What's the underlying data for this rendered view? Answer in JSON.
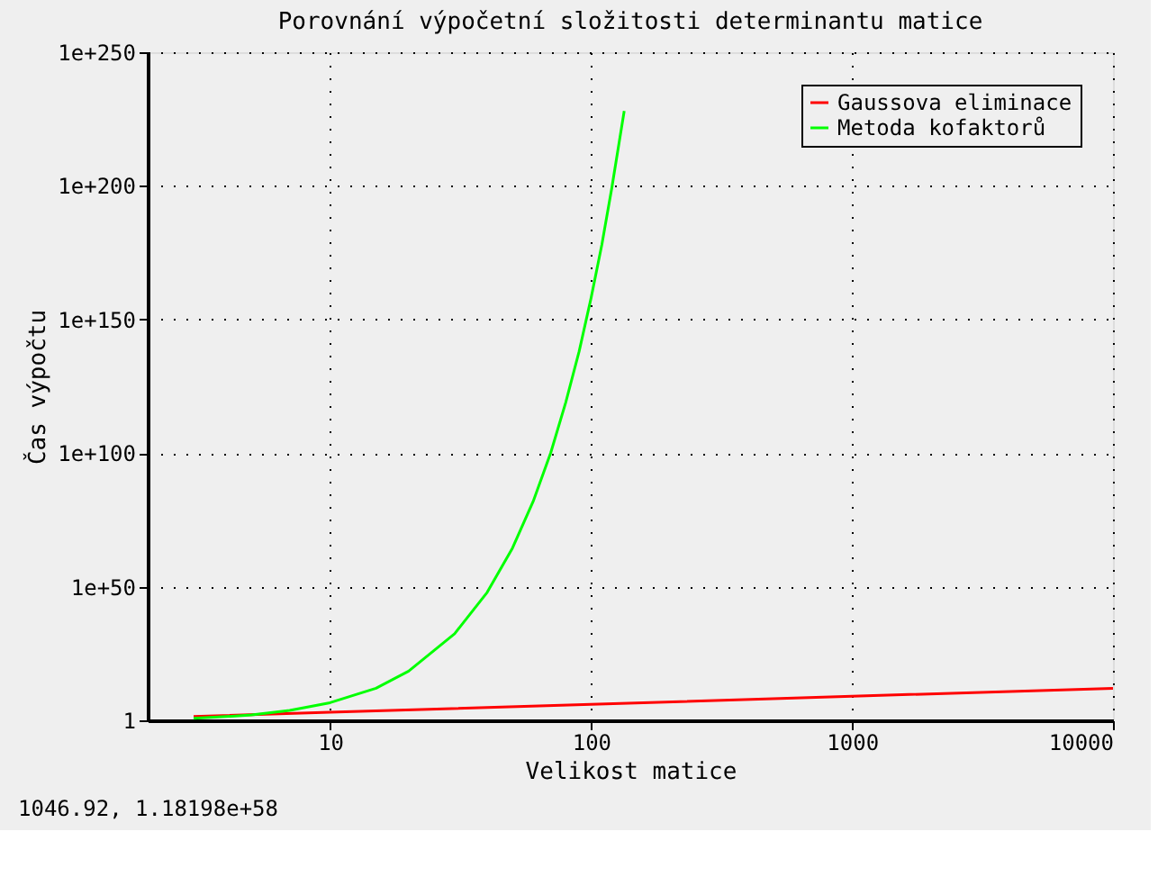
{
  "chart_data": {
    "type": "line",
    "title": "Porovnání výpočetní složitosti determinantu matice",
    "xlabel": "Velikost matice",
    "ylabel": "Čas výpočtu",
    "log": "xy",
    "grid": true,
    "legend": "top right",
    "line_style": "solid",
    "marker": "none",
    "xlim": [
      2,
      10000
    ],
    "xticks": [
      10,
      100,
      1000,
      10000
    ],
    "ylim": [
      1,
      1e+250
    ],
    "yticks": [
      1,
      {
        "value": 1e+50,
        "label": "1e+50"
      },
      {
        "value": 1e+100,
        "label": "1e+100"
      },
      {
        "value": 1e+150,
        "label": "1e+150"
      },
      {
        "value": 1e+200,
        "label": "1e+200"
      },
      {
        "value": 1e+250,
        "label": "1e+250"
      }
    ],
    "series": [
      {
        "name": "Gaussova eliminace",
        "color": "#ff0000",
        "x": [
          3,
          10,
          100,
          1000,
          10000
        ],
        "values": [
          27,
          1000,
          1000000.0,
          1000000000.0,
          1000000000000.0
        ]
      },
      {
        "name": "Metoda kofaktorů",
        "color": "#00ff00",
        "x": [
          3,
          4,
          5,
          7,
          10,
          15,
          20,
          30,
          40,
          50,
          60,
          70,
          80,
          90,
          100,
          110,
          120,
          134
        ],
        "values": [
          6,
          25,
          100.0,
          5000.0,
          4000000.0,
          1000000000000.0,
          2.5e+18,
          2.5e+32,
          8e+47,
          3e+64,
          8e+81,
          1e+100,
          1e+119,
          1e+138,
          1e+158,
          1e+178,
          1e+199,
          1e+228
        ]
      }
    ],
    "annotations": [
      "1046.92,   1.18198e+58"
    ]
  }
}
